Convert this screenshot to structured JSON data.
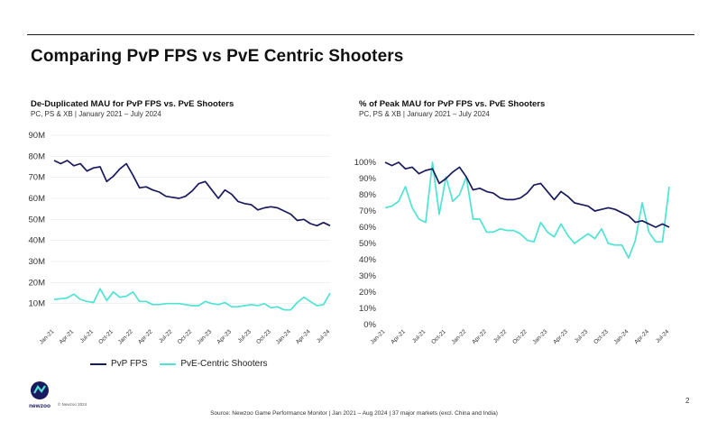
{
  "page": {
    "title": "Comparing PvP FPS vs PvE Centric Shooters",
    "footer": "Source: Newzoo Game Performance Monitor | Jan 2021 – Aug 2024 | 37 major markets (excl. China and India)",
    "page_number": "2",
    "copyright": "© Newzoo 2024",
    "brand": "newzoo"
  },
  "colors": {
    "pvp": "#1a1a5e",
    "pve": "#4fe3d4",
    "grid": "#e6e6e6"
  },
  "legend": {
    "pvp": "PvP FPS",
    "pve": "PvE-Centric Shooters"
  },
  "chart_data": [
    {
      "type": "line",
      "title": "De-Duplicated MAU for PvP FPS vs. PvE Shooters",
      "subtitle": "PC, PS & XB | January 2021 – July 2024",
      "y_ticks": [
        "10M",
        "20M",
        "30M",
        "40M",
        "50M",
        "60M",
        "70M",
        "80M",
        "90M"
      ],
      "ylim": [
        0,
        90
      ],
      "x_ticks": [
        "Jan-21",
        "Apr-21",
        "Jul-21",
        "Oct-21",
        "Jan-22",
        "Apr-22",
        "Jul-22",
        "Oct-22",
        "Jan-23",
        "Apr-23",
        "Jul-23",
        "Oct-23",
        "Jan-24",
        "Apr-24",
        "Jul-24"
      ],
      "grid": true,
      "series": [
        {
          "name": "PvP FPS",
          "values": [
            78,
            76.5,
            78,
            75.5,
            76.5,
            73,
            74.5,
            75,
            68,
            70.5,
            74,
            76.5,
            71,
            65,
            65.5,
            64,
            63,
            61,
            60.5,
            60,
            61,
            63.5,
            67,
            68,
            64,
            60,
            64,
            62,
            58.5,
            57.5,
            57,
            54.5,
            55.5,
            56,
            55.5,
            54,
            52.5,
            49.5,
            50,
            48,
            47,
            48.5,
            47
          ]
        },
        {
          "name": "PvE-Centric Shooters",
          "values": [
            12,
            12.3,
            12.7,
            14.5,
            12,
            11,
            10.5,
            17,
            11.5,
            15.5,
            13,
            13.5,
            15.5,
            11,
            11,
            9.5,
            9.5,
            10,
            10,
            10,
            9.5,
            9,
            9,
            11,
            10,
            9.5,
            10.5,
            8.5,
            8.5,
            9,
            9.5,
            9,
            10,
            8,
            8.5,
            7,
            7,
            10.5,
            13,
            11,
            9,
            9.5,
            15
          ]
        }
      ]
    },
    {
      "type": "line",
      "title": "% of Peak MAU for PvP FPS vs. PvE Shooters",
      "subtitle": "PC, PS & XB | January 2021 – July 2024",
      "y_ticks": [
        "0%",
        "10%",
        "20%",
        "30%",
        "40%",
        "50%",
        "60%",
        "70%",
        "80%",
        "90%",
        "100%"
      ],
      "ylim": [
        0,
        100
      ],
      "x_ticks": [
        "Jan-21",
        "Apr-21",
        "Jul-21",
        "Oct-21",
        "Jan-22",
        "Apr-22",
        "Jul-22",
        "Oct-22",
        "Jan-23",
        "Apr-23",
        "Jul-23",
        "Oct-23",
        "Jan-24",
        "Apr-24",
        "Jul-24"
      ],
      "grid": false,
      "series": [
        {
          "name": "PvP FPS",
          "values": [
            100,
            98,
            100,
            96,
            97,
            93,
            95,
            96,
            87,
            90,
            94,
            97,
            91,
            83,
            84,
            82,
            81,
            78,
            77,
            77,
            78,
            81,
            86,
            87,
            82,
            77,
            82,
            79,
            75,
            74,
            73,
            70,
            71,
            72,
            71,
            69,
            67,
            63,
            64,
            62,
            60,
            62,
            60
          ]
        },
        {
          "name": "PvE-Centric Shooters",
          "values": [
            72,
            73,
            76,
            85,
            72,
            65,
            63,
            100,
            68,
            91,
            76,
            80,
            91,
            65,
            65,
            57,
            57,
            59,
            58,
            58,
            56,
            52,
            51,
            63,
            57,
            54,
            62,
            55,
            50,
            53,
            56,
            53,
            59,
            50,
            49,
            49,
            41,
            52,
            75,
            57,
            51,
            51,
            85
          ]
        }
      ]
    }
  ]
}
